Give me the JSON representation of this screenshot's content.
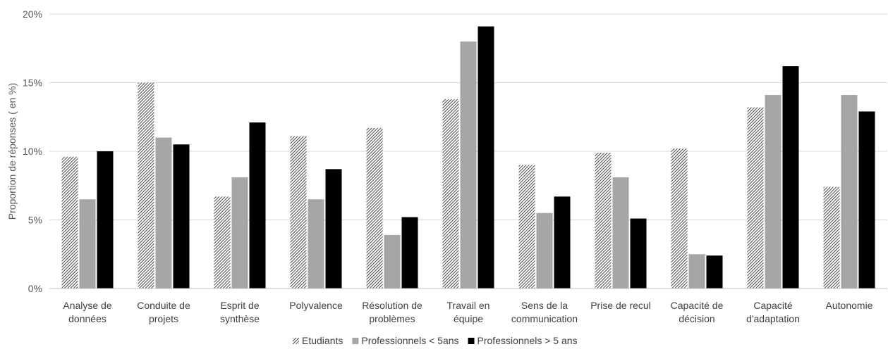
{
  "chart_data": {
    "type": "bar",
    "title": "",
    "xlabel": "",
    "ylabel": "Proportion de réponses ( en %)",
    "ylim": [
      0,
      20
    ],
    "yticks": [
      0,
      5,
      10,
      15,
      20
    ],
    "ytick_labels": [
      "0%",
      "5%",
      "10%",
      "15%",
      "20%"
    ],
    "grid": true,
    "legend_position": "bottom",
    "categories": [
      [
        "Analyse de",
        "données"
      ],
      [
        "Conduite de",
        "projets"
      ],
      [
        "Esprit de",
        "synthèse"
      ],
      [
        "Polyvalence"
      ],
      [
        "Résolution de",
        "problèmes"
      ],
      [
        "Travail en",
        "équipe"
      ],
      [
        "Sens de la",
        "communication"
      ],
      [
        "Prise de recul"
      ],
      [
        "Capacité de",
        "décision"
      ],
      [
        "Capacité",
        "d'adaptation"
      ],
      [
        "Autonomie"
      ]
    ],
    "series": [
      {
        "name": "Etudiants",
        "fill": "hatch",
        "color": "#000000",
        "values": [
          9.6,
          15.0,
          6.7,
          11.1,
          11.7,
          13.8,
          9.0,
          9.9,
          10.2,
          13.2,
          7.4
        ]
      },
      {
        "name": "Professionnels < 5ans",
        "fill": "solid",
        "color": "#a6a6a6",
        "values": [
          6.5,
          11.0,
          8.1,
          6.5,
          3.9,
          18.0,
          5.5,
          8.1,
          2.5,
          14.1,
          14.1
        ]
      },
      {
        "name": "Professionnels > 5 ans",
        "fill": "solid",
        "color": "#000000",
        "values": [
          10.0,
          10.5,
          12.1,
          8.7,
          5.2,
          19.1,
          6.7,
          5.1,
          2.4,
          16.2,
          12.9
        ]
      }
    ]
  }
}
